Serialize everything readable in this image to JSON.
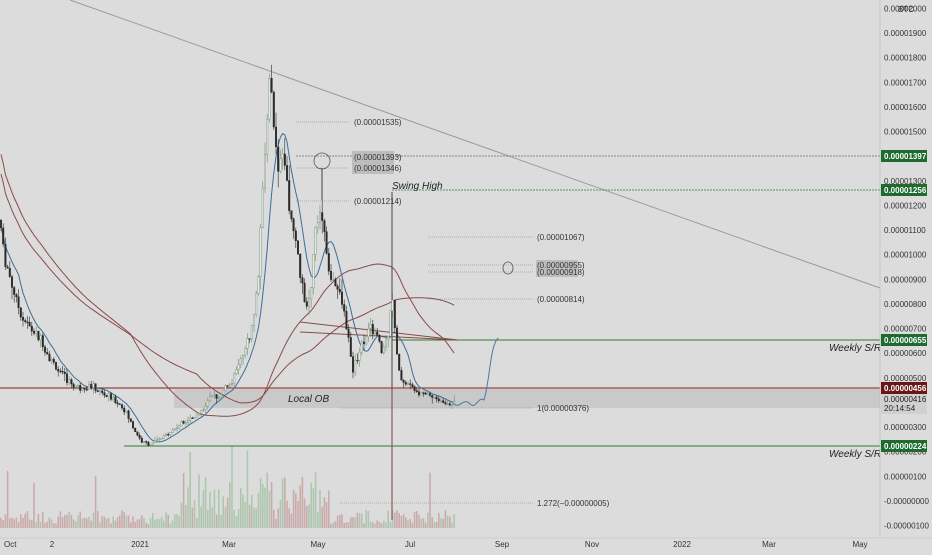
{
  "chart_data": {
    "type": "candlestick",
    "quote_currency": "BTC",
    "y_ticks": [
      "0.00002000",
      "0.00001900",
      "0.00001800",
      "0.00001700",
      "0.00001600",
      "0.00001500",
      "0.00001400",
      "0.00001300",
      "0.00001200",
      "0.00001100",
      "0.00001000",
      "0.00000900",
      "0.00000800",
      "0.00000700",
      "0.00000600",
      "0.00000500",
      "0.00000400",
      "0.00000300",
      "0.00000200",
      "0.00000100",
      "-0.00000000",
      "-0.00000100"
    ],
    "y_tick_values": [
      2e-05,
      1.9e-05,
      1.8e-05,
      1.7e-05,
      1.6e-05,
      1.5e-05,
      1.4e-05,
      1.3e-05,
      1.2e-05,
      1.1e-05,
      1e-05,
      9e-06,
      8e-06,
      7e-06,
      6e-06,
      5e-06,
      4e-06,
      3e-06,
      2e-06,
      1e-06,
      0,
      -1e-06
    ],
    "ylim": [
      -1.1e-06,
      2.01e-05
    ],
    "x_ticks": [
      "Oct",
      "2",
      "2021",
      "Mar",
      "May",
      "Jul",
      "Sep",
      "Nov",
      "2022",
      "Mar",
      "May"
    ],
    "price_path": [
      [
        0,
        1.14e-05
      ],
      [
        4,
        1e-05
      ],
      [
        8,
        9.4e-06
      ],
      [
        12,
        8.8e-06
      ],
      [
        16,
        8.2e-06
      ],
      [
        22,
        7.5e-06
      ],
      [
        30,
        7e-06
      ],
      [
        40,
        6.6e-06
      ],
      [
        50,
        5.8e-06
      ],
      [
        60,
        5.2e-06
      ],
      [
        70,
        4.8e-06
      ],
      [
        80,
        4.6e-06
      ],
      [
        90,
        4.7e-06
      ],
      [
        100,
        4.4e-06
      ],
      [
        110,
        4.2e-06
      ],
      [
        118,
        4e-06
      ],
      [
        126,
        3.6e-06
      ],
      [
        134,
        2.9e-06
      ],
      [
        142,
        2.4e-06
      ],
      [
        150,
        2.3e-06
      ],
      [
        160,
        2.5e-06
      ],
      [
        170,
        2.8e-06
      ],
      [
        180,
        3.1e-06
      ],
      [
        190,
        3.3e-06
      ],
      [
        200,
        3.6e-06
      ],
      [
        210,
        4.1e-06
      ],
      [
        222,
        4.4e-06
      ],
      [
        234,
        5e-06
      ],
      [
        244,
        6e-06
      ],
      [
        252,
        7e-06
      ],
      [
        258,
        9e-06
      ],
      [
        262,
        1.2e-05
      ],
      [
        266,
        1.5e-05
      ],
      [
        270,
        1.75e-05
      ],
      [
        274,
        1.5e-05
      ],
      [
        278,
        1.3e-05
      ],
      [
        282,
        1.4e-05
      ],
      [
        286,
        1.3e-05
      ],
      [
        290,
        1.18e-05
      ],
      [
        294,
        1.08e-05
      ],
      [
        298,
        9.8e-06
      ],
      [
        302,
        8.8e-06
      ],
      [
        306,
        7.6e-06
      ],
      [
        310,
        8.2e-06
      ],
      [
        314,
        1.05e-05
      ],
      [
        318,
        1.12e-05
      ],
      [
        322,
        1.18e-05
      ],
      [
        326,
        1e-05
      ],
      [
        330,
        9.2e-06
      ],
      [
        336,
        8.8e-06
      ],
      [
        342,
        8e-06
      ],
      [
        348,
        6.8e-06
      ],
      [
        352,
        5.2e-06
      ],
      [
        358,
        6e-06
      ],
      [
        364,
        6.6e-06
      ],
      [
        370,
        7e-06
      ],
      [
        376,
        6.8e-06
      ],
      [
        382,
        6e-06
      ],
      [
        388,
        6.8e-06
      ],
      [
        392,
        8.6e-06
      ],
      [
        396,
        6.2e-06
      ],
      [
        400,
        5e-06
      ],
      [
        406,
        4.8e-06
      ],
      [
        412,
        4.6e-06
      ],
      [
        418,
        4.5e-06
      ],
      [
        426,
        4.4e-06
      ],
      [
        434,
        4.2e-06
      ],
      [
        442,
        4e-06
      ],
      [
        450,
        3.9e-06
      ],
      [
        456,
        4.1e-06
      ]
    ],
    "fib_levels": [
      "(0.00001535)",
      "(0.00001393)",
      "(0.00001346)",
      "(0.00001214)",
      "(0.00001067)",
      "(0.00000955)",
      "(0.00000918)",
      "(0.00000814)",
      "1(0.00000376)",
      "1.272(−0.00000005)"
    ],
    "annotations": [
      "Swing High",
      "Local OB",
      "Weekly S/R",
      "Weekly S/R"
    ],
    "price_badges": [
      {
        "label": "0.00001397",
        "color": "#1e6b30"
      },
      {
        "label": "0.00001256",
        "color": "#1e6b30"
      },
      {
        "label": "0.00000655",
        "color": "#1e6b30"
      },
      {
        "label": "0.00000456",
        "color": "#6b1616"
      },
      {
        "label": "0.00000416",
        "color": "#d8d8d8"
      },
      {
        "label": "20:14:54",
        "color": "#d8d8d8"
      },
      {
        "label": "0.00000224",
        "color": "#1e6b30"
      }
    ],
    "colors": {
      "up": "#6f8f6f",
      "down": "#2b2b2b",
      "ma_fast": "#3a6f9a",
      "ma_slow": "#8a4a4a",
      "support": "#2e7d32",
      "resistance": "#8b1a1a"
    }
  }
}
